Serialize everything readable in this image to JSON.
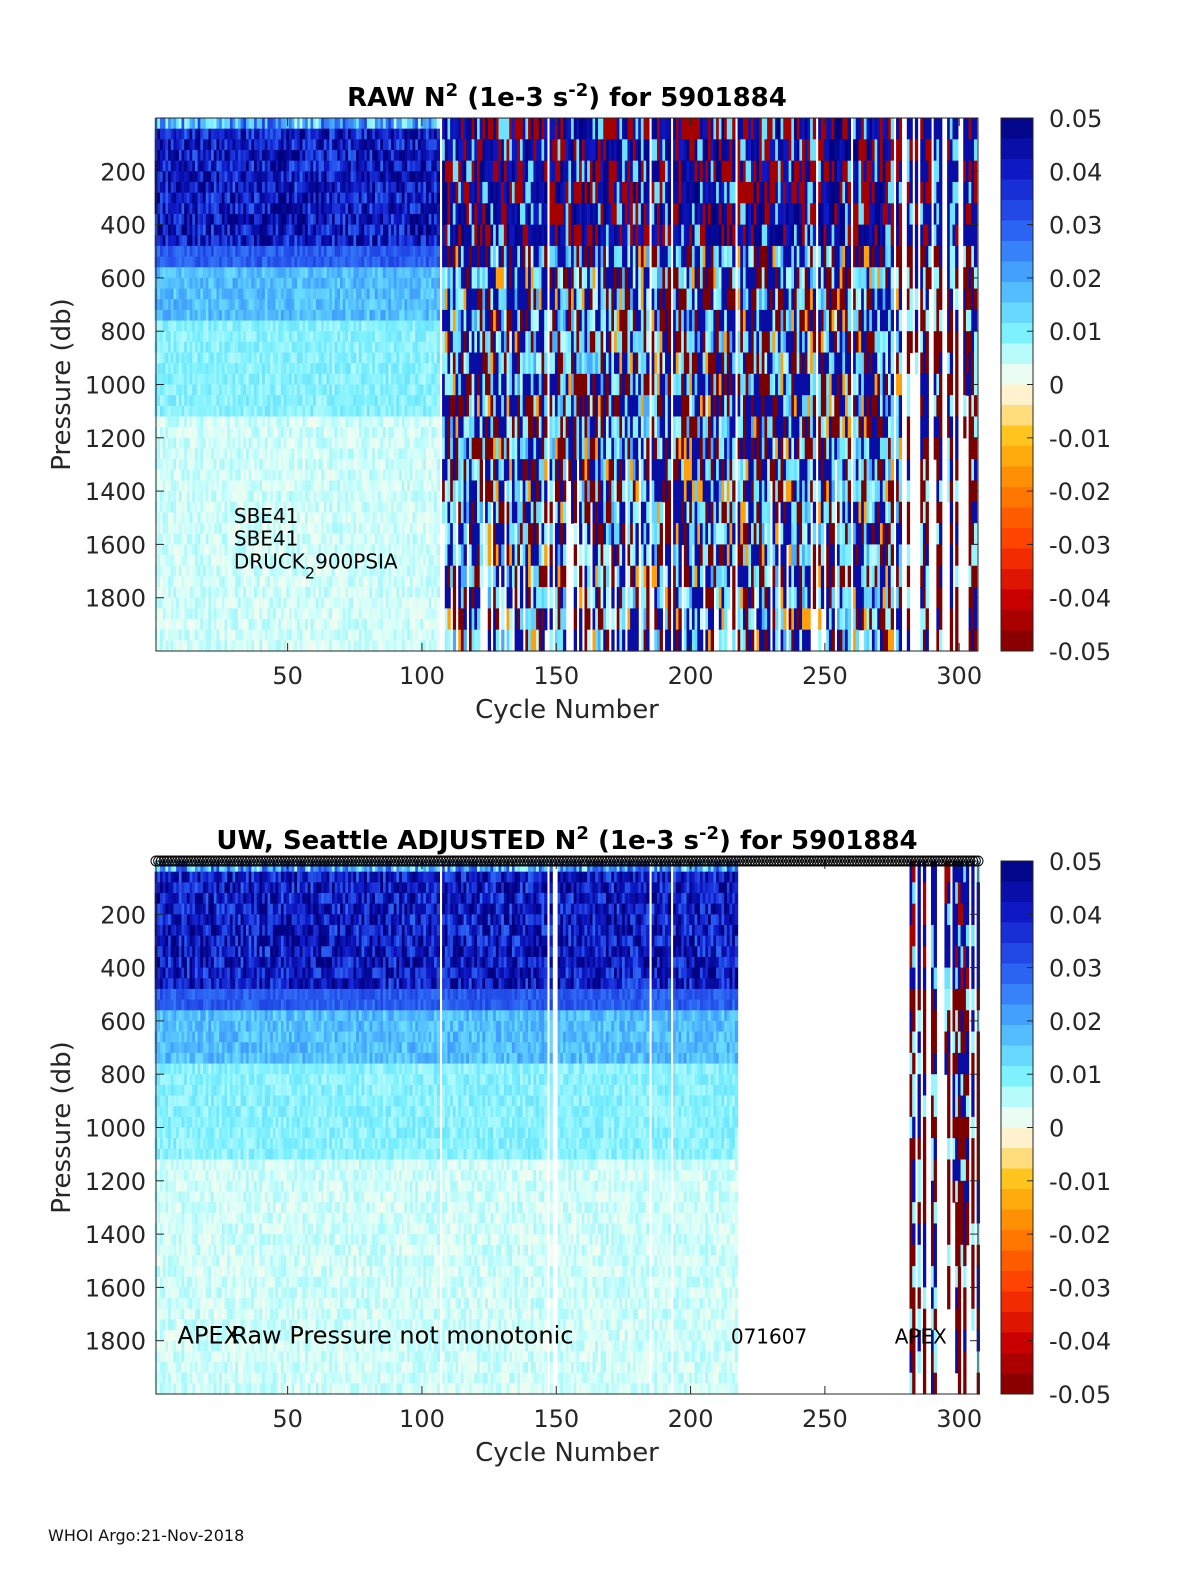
{
  "footer": "WHOI Argo:21-Nov-2018",
  "chart_data": [
    {
      "type": "heatmap",
      "title_parts": [
        "RAW N",
        "2",
        " (1e-3 s",
        "-2",
        ") for 5901884"
      ],
      "xlabel": "Cycle Number",
      "ylabel": "Pressure (db)",
      "xlim": [
        1,
        307
      ],
      "ylim": [
        2000,
        0
      ],
      "xticks": [
        50,
        100,
        150,
        200,
        250,
        300
      ],
      "yticks": [
        200,
        400,
        600,
        800,
        1000,
        1200,
        1400,
        1600,
        1800
      ],
      "colorbar": {
        "min": -0.05,
        "max": 0.05,
        "ticks": [
          "0.05",
          "0.04",
          "0.03",
          "0.02",
          "0.01",
          "0",
          "-0.01",
          "-0.02",
          "-0.03",
          "-0.04",
          "-0.05"
        ],
        "tick_values": [
          0.05,
          0.04,
          0.03,
          0.02,
          0.01,
          0,
          -0.01,
          -0.02,
          -0.03,
          -0.04,
          -0.05
        ]
      },
      "gaps": [
        107,
        147,
        185,
        193,
        217,
        247,
        260,
        276,
        285
      ],
      "zones": [
        {
          "x": [
            1,
            106
          ],
          "style": "stable"
        },
        {
          "x": [
            107,
            278
          ],
          "style": "noisy"
        },
        {
          "x": [
            279,
            307
          ],
          "style": "sparse"
        }
      ],
      "annotations": [
        {
          "kind": "plain",
          "text": "SBE41",
          "x": 30,
          "y": 1520
        },
        {
          "kind": "plain",
          "text": "SBE41",
          "x": 30,
          "y": 1605
        },
        {
          "kind": "sub",
          "text": "DRUCK",
          "sub": "2",
          "after": "900PSIA",
          "x": 30,
          "y": 1690
        }
      ],
      "markers": false
    },
    {
      "type": "heatmap",
      "title_parts": [
        "UW, Seattle  ADJUSTED N",
        "2",
        " (1e-3 s",
        "-2",
        ") for 5901884"
      ],
      "xlabel": "Cycle Number",
      "ylabel": "Pressure (db)",
      "xlim": [
        1,
        307
      ],
      "ylim": [
        2000,
        0
      ],
      "xticks": [
        50,
        100,
        150,
        200,
        250,
        300
      ],
      "yticks": [
        200,
        400,
        600,
        800,
        1000,
        1200,
        1400,
        1600,
        1800
      ],
      "colorbar": {
        "min": -0.05,
        "max": 0.05,
        "ticks": [
          "0.05",
          "0.04",
          "0.03",
          "0.02",
          "0.01",
          "0",
          "-0.01",
          "-0.02",
          "-0.03",
          "-0.04",
          "-0.05"
        ],
        "tick_values": [
          0.05,
          0.04,
          0.03,
          0.02,
          0.01,
          0,
          -0.01,
          -0.02,
          -0.03,
          -0.04,
          -0.05
        ]
      },
      "gaps": [
        107,
        147,
        185,
        193
      ],
      "zones": [
        {
          "x": [
            1,
            148
          ],
          "style": "stable"
        },
        {
          "x": [
            151,
            217
          ],
          "style": "stable"
        },
        {
          "x": [
            281,
            307
          ],
          "style": "sparse"
        }
      ],
      "annotations": [
        {
          "kind": "plain",
          "text": "APEX",
          "x": 9,
          "y": 1810,
          "size": 24
        },
        {
          "kind": "plain",
          "text": "Raw Pressure not monotonic",
          "x": 29,
          "y": 1810,
          "size": 24
        },
        {
          "kind": "plain",
          "text": "071607",
          "x": 215,
          "y": 1810
        },
        {
          "kind": "plain",
          "text": "APEX",
          "x": 276,
          "y": 1810
        }
      ],
      "markers": true
    }
  ]
}
